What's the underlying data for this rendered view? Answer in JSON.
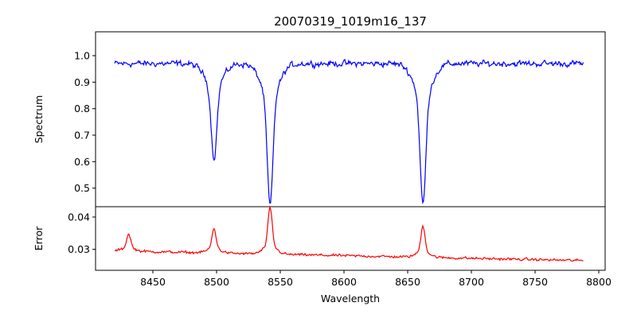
{
  "chart_data": [
    {
      "type": "line",
      "title": "20070319_1019m16_137",
      "ylabel": "Spectrum",
      "xlabel": "",
      "xlim": [
        8405,
        8805
      ],
      "ylim": [
        0.43,
        1.09
      ],
      "yticks": [
        0.5,
        0.6,
        0.7,
        0.8,
        0.9,
        1.0
      ],
      "ytick_labels": [
        "0.5",
        "0.6",
        "0.7",
        "0.8",
        "0.9",
        "1.0"
      ],
      "grid": false,
      "series": [
        {
          "color": "#0000ff",
          "x_start": 8420,
          "x_end": 8788,
          "continuum": 0.97,
          "noise": 0.028,
          "absorption_lines": [
            {
              "center": 8498,
              "min": 0.63
            },
            {
              "center": 8542,
              "min": 0.46
            },
            {
              "center": 8662,
              "min": 0.465
            }
          ]
        }
      ]
    },
    {
      "type": "line",
      "title": "",
      "ylabel": "Error",
      "xlabel": "Wavelength",
      "xlim": [
        8405,
        8805
      ],
      "ylim": [
        0.0235,
        0.0432
      ],
      "yticks": [
        0.03,
        0.04
      ],
      "ytick_labels": [
        "0.03",
        "0.04"
      ],
      "xticks": [
        8450,
        8500,
        8550,
        8600,
        8650,
        8700,
        8750,
        8800
      ],
      "xtick_labels": [
        "8450",
        "8500",
        "8550",
        "8600",
        "8650",
        "8700",
        "8750",
        "8800"
      ],
      "grid": false,
      "series": [
        {
          "color": "#ff0000",
          "x_start": 8420,
          "x_end": 8788,
          "baseline_start": 0.0295,
          "baseline_end": 0.0265,
          "noise": 0.0009,
          "peaks": [
            {
              "center": 8431,
              "max": 0.0345
            },
            {
              "center": 8498,
              "max": 0.036
            },
            {
              "center": 8542,
              "max": 0.0422
            },
            {
              "center": 8662,
              "max": 0.0368
            }
          ]
        }
      ]
    }
  ]
}
